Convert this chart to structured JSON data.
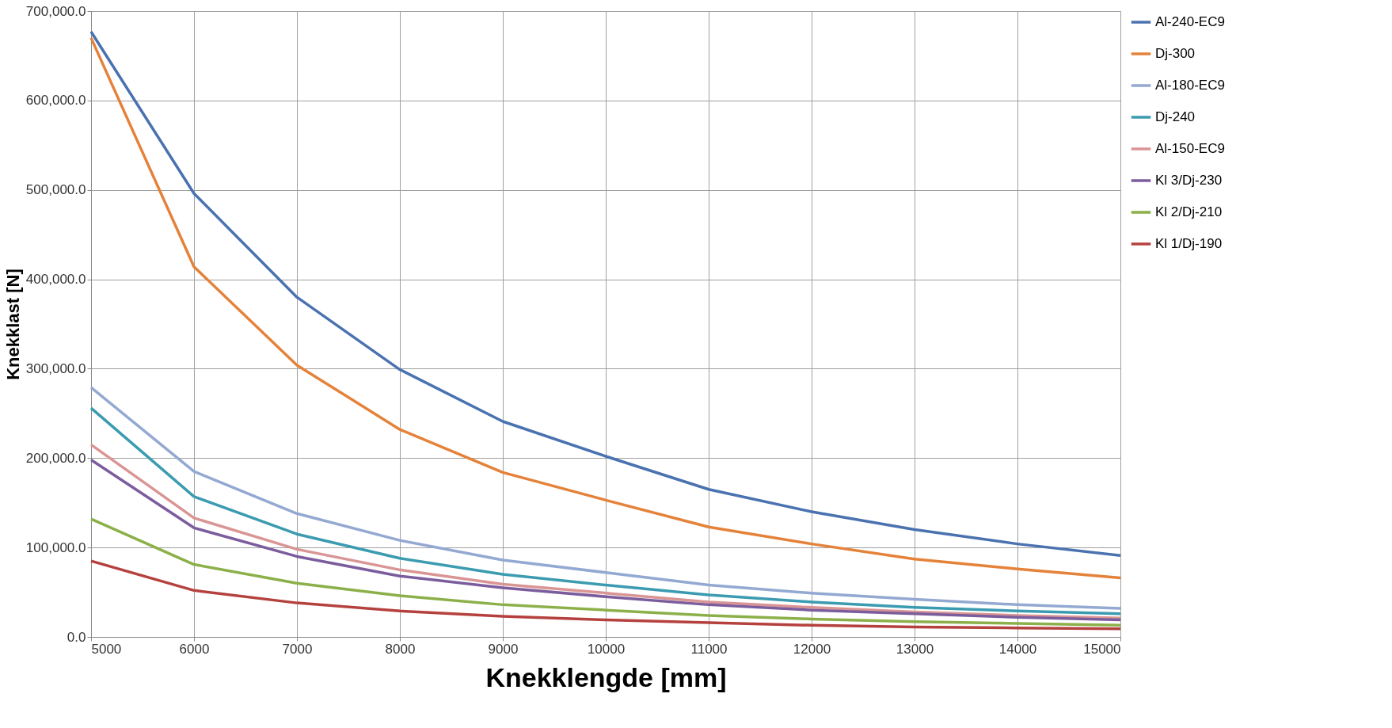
{
  "chart_data": {
    "type": "line",
    "xlabel": "Knekklengde [mm]",
    "ylabel": "Knekklast [N]",
    "x": [
      5000,
      6000,
      7000,
      8000,
      9000,
      10000,
      11000,
      12000,
      13000,
      14000,
      15000
    ],
    "xlim": [
      5000,
      15000
    ],
    "xticks": [
      5000,
      6000,
      7000,
      8000,
      9000,
      10000,
      11000,
      12000,
      13000,
      14000,
      15000
    ],
    "ylim": [
      0,
      700000
    ],
    "yticks": [
      {
        "value": 0,
        "label": "0.0"
      },
      {
        "value": 100000,
        "label": "100,000.0"
      },
      {
        "value": 200000,
        "label": "200,000.0"
      },
      {
        "value": 300000,
        "label": "300,000.0"
      },
      {
        "value": 400000,
        "label": "400,000.0"
      },
      {
        "value": 500000,
        "label": "500,000.0"
      },
      {
        "value": 600000,
        "label": "600,000.0"
      },
      {
        "value": 700000,
        "label": "700,000.0"
      }
    ],
    "grid": true,
    "legend": "right",
    "marker": "none",
    "line_style": "solid",
    "series": [
      {
        "name": "Al-240-EC9",
        "color": "#4a72b0",
        "values": [
          677000,
          496000,
          380000,
          299000,
          241000,
          202000,
          165000,
          140000,
          120000,
          104000,
          91000
        ]
      },
      {
        "name": "Dj-300",
        "color": "#e5823a",
        "values": [
          670000,
          414000,
          304000,
          232000,
          184000,
          153000,
          123000,
          104000,
          87000,
          76000,
          66000
        ]
      },
      {
        "name": "Al-180-EC9",
        "color": "#93a9d2",
        "values": [
          279000,
          185000,
          138000,
          108000,
          86000,
          72000,
          58000,
          49000,
          42000,
          36000,
          32000
        ]
      },
      {
        "name": "Dj-240",
        "color": "#3b9bb0",
        "values": [
          256000,
          157000,
          115000,
          88000,
          70000,
          58000,
          47000,
          39000,
          33000,
          29000,
          26000
        ]
      },
      {
        "name": "Al-150-EC9",
        "color": "#d99594",
        "values": [
          215000,
          133000,
          98000,
          75000,
          59000,
          49000,
          39000,
          33000,
          28000,
          24000,
          21000
        ]
      },
      {
        "name": "Kl 3/Dj-230",
        "color": "#7b5d9d",
        "values": [
          198000,
          122000,
          90000,
          68000,
          55000,
          45000,
          36000,
          30000,
          26000,
          22000,
          19000
        ]
      },
      {
        "name": "Kl 2/Dj-210",
        "color": "#8cb049",
        "values": [
          132000,
          81000,
          60000,
          46000,
          36000,
          30000,
          24000,
          20000,
          17000,
          15000,
          13000
        ]
      },
      {
        "name": "Kl 1/Dj-190",
        "color": "#b5413e",
        "values": [
          85000,
          52000,
          38000,
          29000,
          23000,
          19000,
          16000,
          13000,
          11000,
          10000,
          9000
        ]
      }
    ]
  }
}
